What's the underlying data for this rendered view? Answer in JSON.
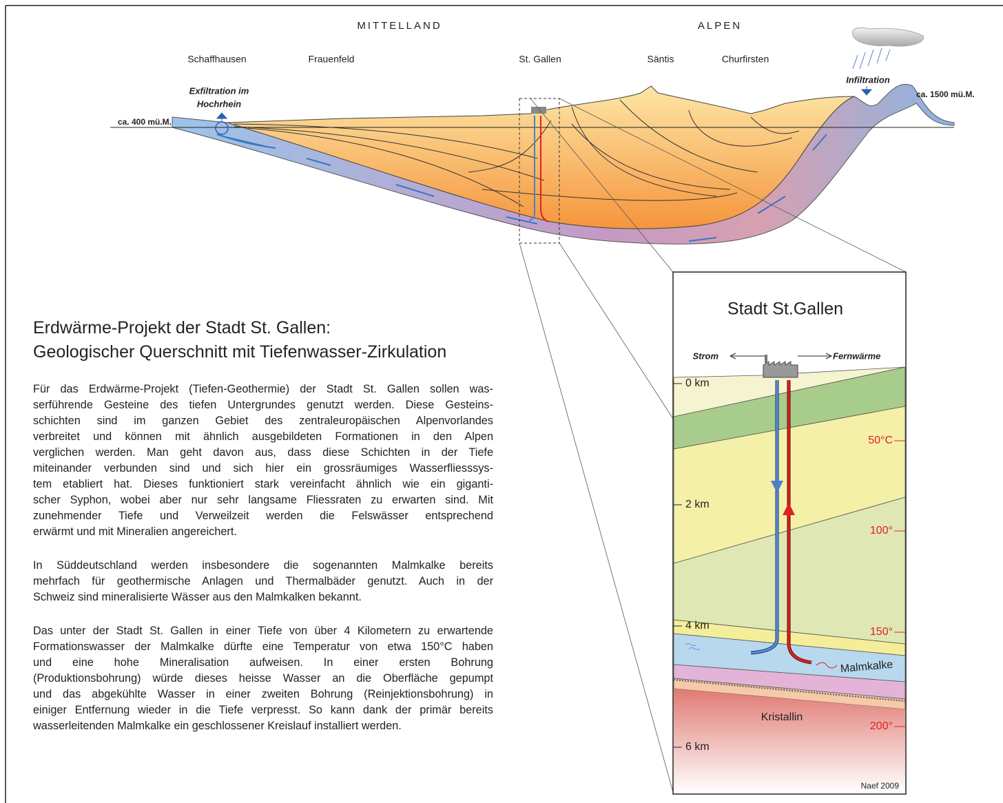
{
  "regions": [
    "MITTELLAND",
    "ALPEN"
  ],
  "places": [
    "Schaffhausen",
    "Frauenfeld",
    "St. Gallen",
    "Säntis",
    "Churfirsten"
  ],
  "exfiltration": [
    "Exfiltration im",
    "Hochrhein"
  ],
  "infiltration": "Infiltration",
  "elevation_low": "ca. 400 mü.M.",
  "elevation_high": "ca. 1500 mü.M.",
  "heading": [
    "Erdwärme-Projekt der Stadt St. Gallen:",
    "Geologischer Querschnitt mit Tiefenwasser-Zirkulation"
  ],
  "paragraphs": [
    [
      "Für das Erdwärme-Projekt (Tiefen-Geothermie) der Stadt St. Gallen sollen was-",
      "serführende Gesteine des tiefen Untergrundes genutzt werden. Diese Gesteins-",
      "schichten sind im ganzen Gebiet des zentraleuropäischen Alpenvorlandes",
      "verbreitet und können mit ähnlich ausgebildeten Formationen in den Alpen",
      "verglichen werden. Man geht davon aus, dass diese Schichten in der Tiefe",
      "miteinander verbunden sind und sich hier ein grossräumiges Wasserfliesssys-",
      "tem etabliert hat. Dieses funktioniert stark vereinfacht ähnlich wie ein giganti-",
      "scher Syphon, wobei aber nur sehr langsame Fliessraten zu erwarten sind. Mit",
      "zunehmender Tiefe und Verweilzeit werden die Felswässer entsprechend",
      "erwärmt und mit Mineralien angereichert."
    ],
    [
      "In Süddeutschland werden insbesondere die sogenannten Malmkalke bereits",
      "mehrfach für geothermische Anlagen und Thermalbäder genutzt. Auch in der",
      "Schweiz sind mineralisierte Wässer aus den Malmkalken bekannt."
    ],
    [
      "Das unter der Stadt St. Gallen in einer Tiefe von über 4 Kilometern zu erwartende",
      "Formationswasser der Malmkalke dürfte eine Temperatur von etwa 150°C haben",
      "und eine hohe Mineralisation aufweisen. In einer ersten Bohrung",
      "(Produktionsbohrung) würde dieses heisse Wasser an die Oberfläche gepumpt",
      "und das abgekühlte Wasser in einer zweiten Bohrung (Reinjektionsbohrung)  in",
      "einiger Entfernung wieder in die Tiefe verpresst. So kann dank der primär bereits",
      "wasserleitenden Malmkalke ein geschlossener Kreislauf installiert werden."
    ]
  ],
  "inset": {
    "title": "Stadt St.Gallen",
    "left_output": "Strom",
    "right_output": "Fernwärme",
    "depths": [
      "0 km",
      "2 km",
      "4 km",
      "6 km"
    ],
    "temperatures": [
      "50°C",
      "100°",
      "150°",
      "200°"
    ],
    "aquifer": "Malmkalke",
    "basement": "Kristallin",
    "credit": "Naef 2009"
  }
}
